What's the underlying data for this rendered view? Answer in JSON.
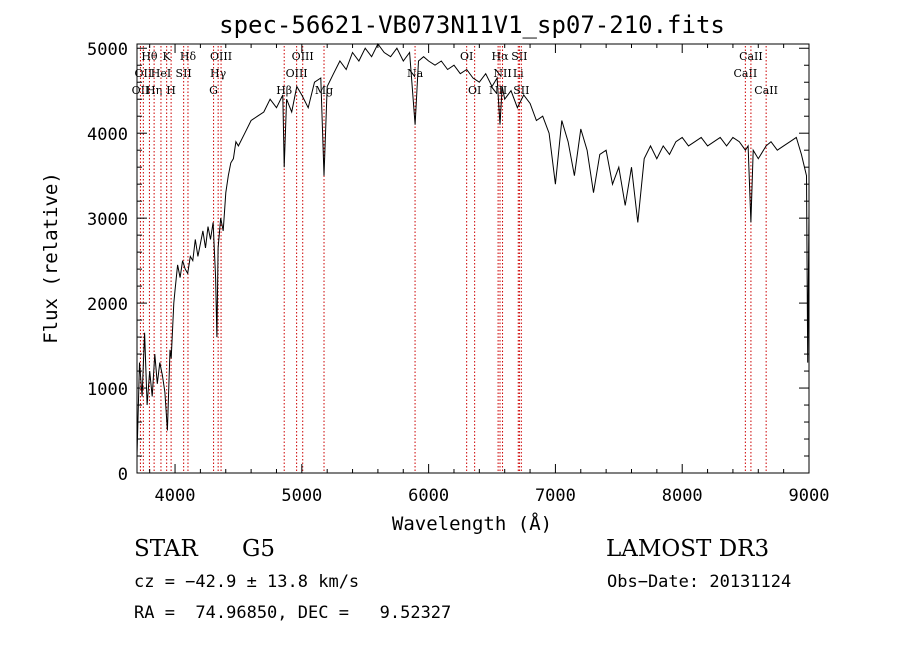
{
  "chart_data": {
    "type": "line",
    "title": "spec-56621-VB073N11V1_sp07-210.fits",
    "xlabel": "Wavelength (Å)",
    "ylabel": "Flux (relative)",
    "xlim": [
      3700,
      9000
    ],
    "ylim": [
      0,
      5050
    ],
    "x_ticks": [
      4000,
      5000,
      6000,
      7000,
      8000,
      9000
    ],
    "x_tick_labels": [
      "4000",
      "5000",
      "6000",
      "7000",
      "8000",
      "9000"
    ],
    "y_ticks": [
      0,
      1000,
      2000,
      3000,
      4000,
      5000
    ],
    "y_tick_labels": [
      "0",
      "1000",
      "2000",
      "3000",
      "4000",
      "5000"
    ],
    "line_color": "#000000",
    "marker_color": "#cc0000",
    "series": [
      {
        "x": [
          3700,
          3720,
          3740,
          3760,
          3780,
          3800,
          3820,
          3840,
          3860,
          3880,
          3900,
          3920,
          3940,
          3960,
          3970,
          3990,
          4000,
          4020,
          4040,
          4060,
          4080,
          4100,
          4120,
          4140,
          4160,
          4180,
          4200,
          4220,
          4240,
          4260,
          4280,
          4300,
          4320,
          4330,
          4340,
          4360,
          4380,
          4400,
          4420,
          4440,
          4460,
          4480,
          4500,
          4550,
          4600,
          4650,
          4700,
          4750,
          4800,
          4850,
          4861,
          4880,
          4920,
          4960,
          5000,
          5050,
          5100,
          5150,
          5175,
          5200,
          5250,
          5300,
          5350,
          5400,
          5450,
          5500,
          5550,
          5600,
          5650,
          5700,
          5750,
          5800,
          5850,
          5893,
          5920,
          5960,
          6000,
          6050,
          6100,
          6150,
          6200,
          6250,
          6300,
          6350,
          6400,
          6450,
          6500,
          6540,
          6563,
          6580,
          6600,
          6650,
          6700,
          6750,
          6800,
          6850,
          6900,
          6950,
          7000,
          7050,
          7100,
          7150,
          7200,
          7250,
          7300,
          7350,
          7400,
          7450,
          7500,
          7550,
          7600,
          7650,
          7700,
          7750,
          7800,
          7850,
          7900,
          7950,
          8000,
          8050,
          8100,
          8150,
          8200,
          8250,
          8300,
          8350,
          8400,
          8450,
          8498,
          8520,
          8542,
          8560,
          8600,
          8662,
          8700,
          8750,
          8800,
          8850,
          8900,
          8940,
          8980,
          8990,
          9000
        ],
        "y": [
          200,
          1300,
          900,
          1650,
          800,
          1200,
          900,
          1400,
          1050,
          1300,
          1150,
          950,
          500,
          1450,
          1350,
          2000,
          2150,
          2450,
          2300,
          2500,
          2400,
          2350,
          2550,
          2500,
          2750,
          2550,
          2700,
          2850,
          2650,
          2900,
          2750,
          2950,
          2300,
          1600,
          2650,
          3000,
          2850,
          3300,
          3500,
          3650,
          3700,
          3900,
          3850,
          4000,
          4150,
          4200,
          4250,
          4400,
          4300,
          4450,
          3600,
          4400,
          4250,
          4550,
          4450,
          4300,
          4600,
          4650,
          3500,
          4550,
          4700,
          4850,
          4750,
          4950,
          4850,
          5000,
          4900,
          5050,
          4950,
          4900,
          5000,
          4850,
          4950,
          4100,
          4850,
          4900,
          4850,
          4800,
          4850,
          4750,
          4800,
          4700,
          4750,
          4650,
          4600,
          4700,
          4550,
          4650,
          4100,
          4550,
          4400,
          4500,
          4300,
          4450,
          4350,
          4150,
          4200,
          4000,
          3400,
          4150,
          3900,
          3500,
          4050,
          3800,
          3300,
          3750,
          3800,
          3400,
          3600,
          3150,
          3600,
          2950,
          3700,
          3850,
          3700,
          3850,
          3750,
          3900,
          3950,
          3850,
          3900,
          3950,
          3850,
          3900,
          3950,
          3850,
          3950,
          3900,
          3800,
          3850,
          2950,
          3800,
          3700,
          3850,
          3900,
          3800,
          3850,
          3900,
          3950,
          3750,
          3500,
          1300,
          3100
        ]
      }
    ],
    "line_markers": [
      {
        "wave": 3727,
        "label": "OII",
        "row": 3
      },
      {
        "wave": 3750,
        "label": "OII",
        "row": 2
      },
      {
        "wave": 3798,
        "label": "Hθ",
        "row": 1
      },
      {
        "wave": 3835,
        "label": "Hη",
        "row": 3
      },
      {
        "wave": 3889,
        "label": "HeI",
        "row": 2
      },
      {
        "wave": 3934,
        "label": "K",
        "row": 1
      },
      {
        "wave": 3969,
        "label": "H",
        "row": 3
      },
      {
        "wave": 4068,
        "label": "SII",
        "row": 2
      },
      {
        "wave": 4102,
        "label": "Hδ",
        "row": 1
      },
      {
        "wave": 4304,
        "label": "G",
        "row": 3
      },
      {
        "wave": 4340,
        "label": "Hγ",
        "row": 2
      },
      {
        "wave": 4363,
        "label": "OIII",
        "row": 1
      },
      {
        "wave": 4861,
        "label": "Hβ",
        "row": 3
      },
      {
        "wave": 4959,
        "label": "OIII",
        "row": 2
      },
      {
        "wave": 5007,
        "label": "OIII",
        "row": 1
      },
      {
        "wave": 5175,
        "label": "Mg",
        "row": 3
      },
      {
        "wave": 5893,
        "label": "Na",
        "row": 2
      },
      {
        "wave": 6300,
        "label": "OI",
        "row": 1
      },
      {
        "wave": 6363,
        "label": "OI",
        "row": 3
      },
      {
        "wave": 6548,
        "label": "NII",
        "row": 3
      },
      {
        "wave": 6563,
        "label": "Hα",
        "row": 1
      },
      {
        "wave": 6583,
        "label": "NII",
        "row": 2
      },
      {
        "wave": 6707,
        "label": "Li",
        "row": 2
      },
      {
        "wave": 6716,
        "label": "SII",
        "row": 1
      },
      {
        "wave": 6731,
        "label": "SII",
        "row": 3
      },
      {
        "wave": 8498,
        "label": "CaII",
        "row": 2
      },
      {
        "wave": 8542,
        "label": "CaII",
        "row": 1
      },
      {
        "wave": 8662,
        "label": "CaII",
        "row": 3
      }
    ]
  },
  "info": {
    "class_label": "STAR",
    "subclass_label": "G5",
    "survey_label": "LAMOST DR3",
    "cz_text": "cz = −42.9 ± 13.8 km/s",
    "obs_date_text": "Obs−Date: 20131124",
    "radec_text": "RA =  74.96850, DEC =   9.52327"
  }
}
